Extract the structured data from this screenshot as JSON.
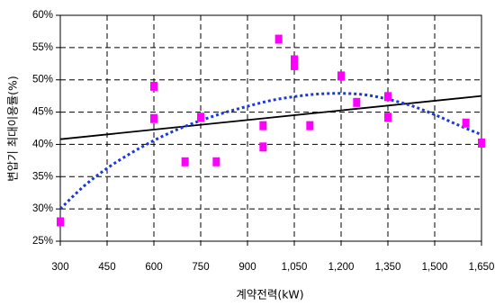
{
  "chart_data": {
    "type": "scatter",
    "title": "",
    "xlabel": "계약전력(kW)",
    "ylabel": "변압기 최대이용률(%)",
    "xlim": [
      300,
      1650
    ],
    "ylim": [
      25,
      60
    ],
    "x_ticks": [
      300,
      450,
      600,
      750,
      900,
      1050,
      1200,
      1350,
      1500,
      1650
    ],
    "x_tick_labels": [
      "300",
      "450",
      "600",
      "750",
      "900",
      "1,050",
      "1,200",
      "1,350",
      "1,500",
      "1,650"
    ],
    "y_ticks": [
      25,
      30,
      35,
      40,
      45,
      50,
      55,
      60
    ],
    "y_tick_labels": [
      "25%",
      "30%",
      "35%",
      "40%",
      "45%",
      "50%",
      "55%",
      "60%"
    ],
    "grid": true,
    "grid_style": "dashed",
    "legend": "none",
    "series": [
      {
        "type": "line",
        "line_style": "solid",
        "color": "#000000",
        "x": [
          300,
          1650
        ],
        "y": [
          40.8,
          47.5
        ]
      },
      {
        "type": "line",
        "line_style": "dotted",
        "color": "#1a3ad8",
        "x": [
          300,
          375,
          450,
          525,
          600,
          675,
          750,
          825,
          900,
          975,
          1050,
          1125,
          1200,
          1275,
          1350,
          1425,
          1500,
          1575,
          1650
        ],
        "y": [
          30.0,
          33.5,
          36.3,
          38.6,
          40.6,
          42.3,
          43.7,
          44.9,
          45.9,
          46.8,
          47.4,
          47.8,
          47.9,
          47.7,
          47.0,
          46.0,
          44.6,
          43.0,
          41.5
        ]
      },
      {
        "type": "scatter",
        "marker": "square",
        "color": "#ff00ff",
        "x": [
          300,
          600,
          600,
          700,
          750,
          800,
          950,
          950,
          1000,
          1050,
          1050,
          1100,
          1200,
          1250,
          1350,
          1350,
          1600,
          1650
        ],
        "y": [
          28.0,
          49.0,
          44.0,
          37.3,
          44.2,
          37.3,
          42.9,
          39.6,
          56.3,
          53.1,
          52.2,
          42.9,
          50.6,
          46.5,
          47.4,
          44.2,
          43.3,
          40.2
        ]
      }
    ]
  }
}
